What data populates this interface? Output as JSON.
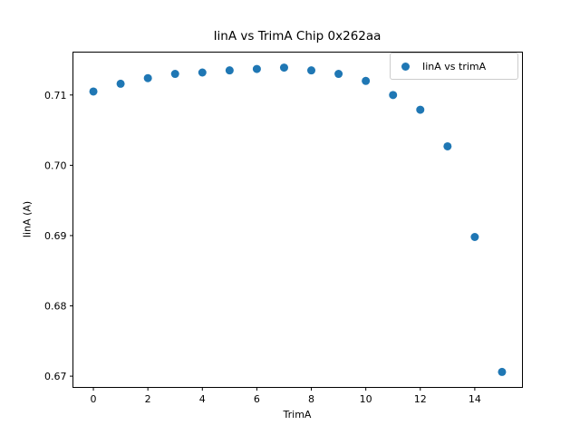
{
  "figure": {
    "background": "#ffffff",
    "text_color": "#000000",
    "spine_color": "#000000",
    "legend_border_color": "#cccccc"
  },
  "chart_data": {
    "type": "scatter",
    "title": "IinA vs TrimA Chip 0x262aa",
    "xlabel": "TrimA",
    "ylabel": "IinA (A)",
    "grid": false,
    "legend": {
      "position": "upper right",
      "entries": [
        {
          "label": "IinA vs trimA",
          "color": "#1f77b4",
          "marker": "circle"
        }
      ]
    },
    "series": [
      {
        "name": "IinA vs trimA",
        "color": "#1f77b4",
        "x": [
          0,
          1,
          2,
          3,
          4,
          5,
          6,
          7,
          8,
          9,
          10,
          11,
          12,
          13,
          14,
          15
        ],
        "y": [
          0.7105,
          0.7116,
          0.7124,
          0.713,
          0.7132,
          0.7135,
          0.7137,
          0.7139,
          0.7135,
          0.713,
          0.712,
          0.71,
          0.7079,
          0.7027,
          0.6898,
          0.6706
        ]
      }
    ],
    "xlim": [
      -0.75,
      15.75
    ],
    "ylim": [
      0.6684,
      0.7161
    ],
    "x_ticks": [
      0,
      2,
      4,
      6,
      8,
      10,
      12,
      14
    ],
    "x_tick_labels": [
      "0",
      "2",
      "4",
      "6",
      "8",
      "10",
      "12",
      "14"
    ],
    "y_ticks": [
      0.67,
      0.68,
      0.69,
      0.7,
      0.71
    ],
    "y_tick_labels": [
      "0.67",
      "0.68",
      "0.69",
      "0.70",
      "0.71"
    ]
  }
}
